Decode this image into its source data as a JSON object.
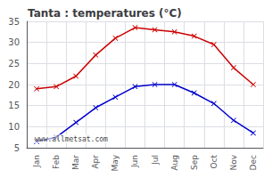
{
  "chart_data": {
    "type": "line",
    "title": "Tanta : temperatures (°C)",
    "categories": [
      "Jan",
      "Feb",
      "Mar",
      "Apr",
      "May",
      "Jun",
      "Jul",
      "Aug",
      "Sep",
      "Oct",
      "Nov",
      "Dec"
    ],
    "series": [
      {
        "color": "#cc0000",
        "values": [
          19,
          19.5,
          22,
          27,
          31,
          33.5,
          33,
          32.5,
          31.5,
          29.5,
          24,
          20
        ]
      },
      {
        "color": "#0000cc",
        "values": [
          6.5,
          7.5,
          11,
          14.5,
          17,
          19.5,
          20,
          20,
          18,
          15.5,
          11.5,
          8.5
        ]
      }
    ],
    "marker": "x",
    "ylim": [
      5,
      35
    ],
    "yticks": [
      5,
      10,
      15,
      20,
      25,
      30,
      35
    ],
    "grid": true,
    "annotations": [
      "www.allmetsat.com"
    ]
  }
}
